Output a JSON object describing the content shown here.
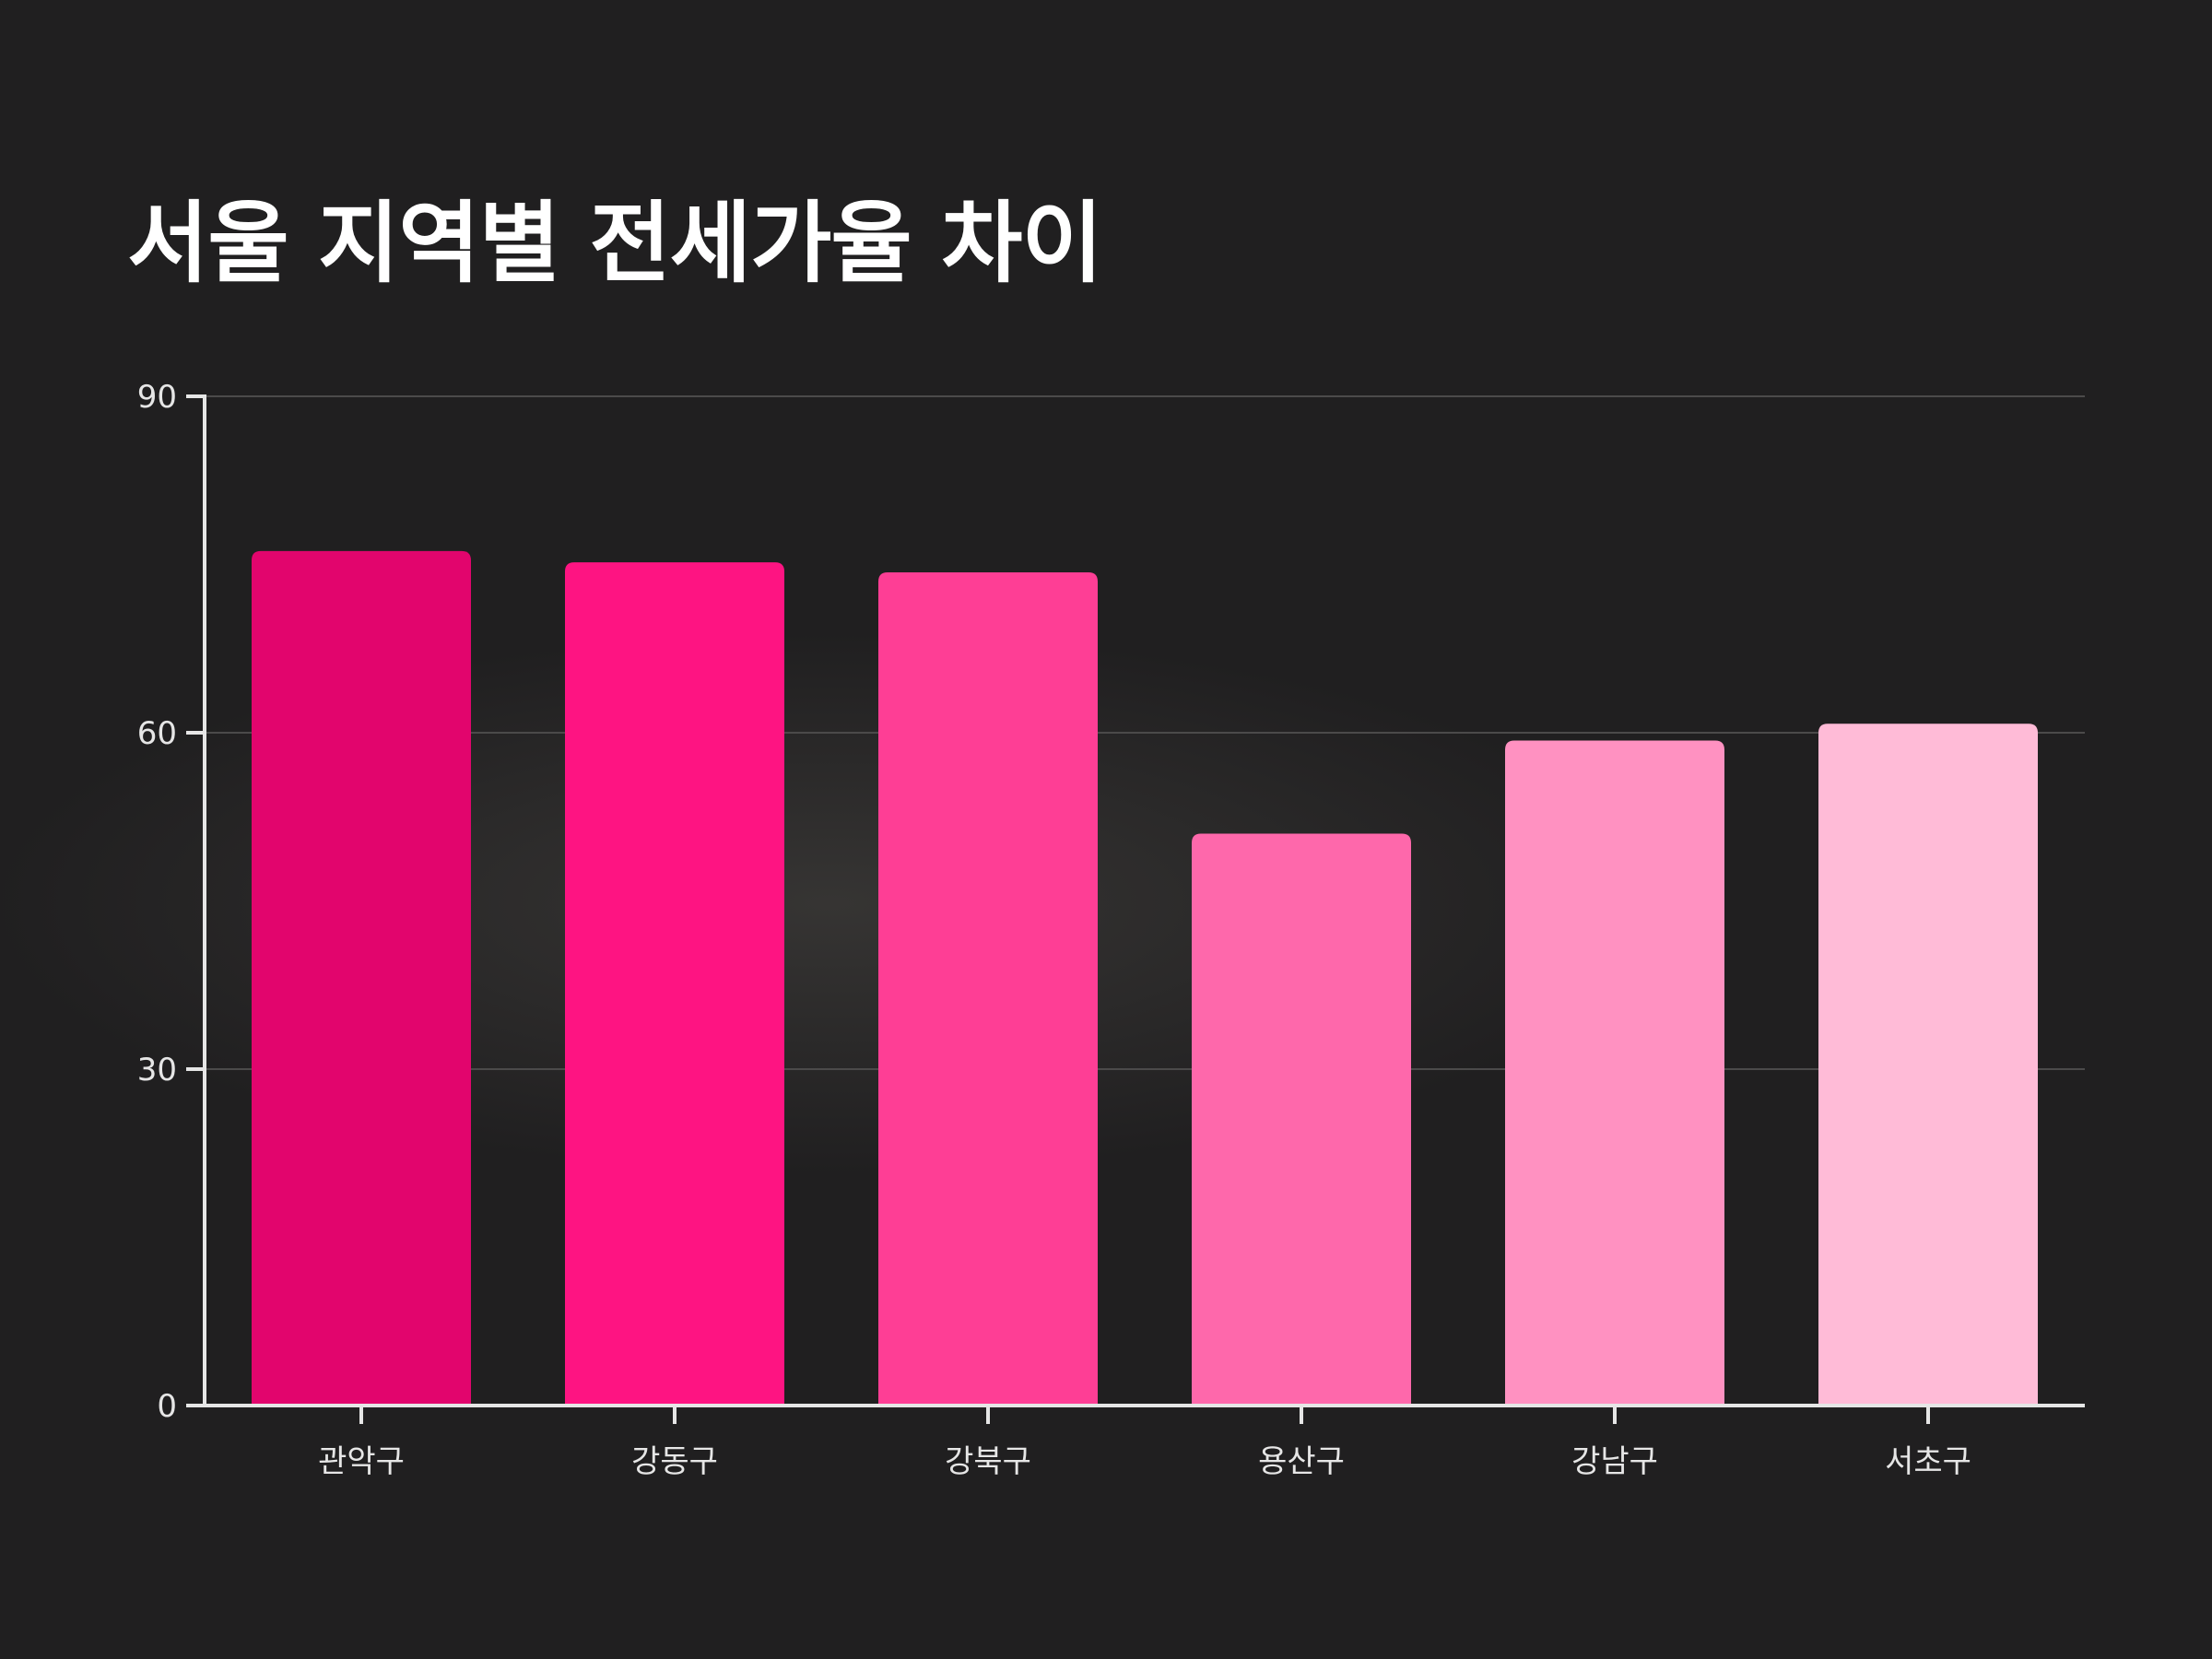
{
  "title": "서울 지역별 전세가율 차이",
  "chart_data": {
    "type": "bar",
    "title": "서울 지역별 전세가율 차이",
    "xlabel": "",
    "ylabel": "",
    "categories": [
      "관악구",
      "강동구",
      "강북구",
      "용산구",
      "강남구",
      "서초구"
    ],
    "values": [
      76.2,
      75.2,
      74.3,
      51.0,
      59.3,
      60.8
    ],
    "ylim": [
      0,
      90
    ],
    "yticks": [
      0,
      30,
      60,
      90
    ],
    "grid": true,
    "legend": "none",
    "colors": [
      "#e2056d",
      "#fe1482",
      "#fe3e95",
      "#fe68ab",
      "#ff91c1",
      "#ffbbd7"
    ]
  }
}
